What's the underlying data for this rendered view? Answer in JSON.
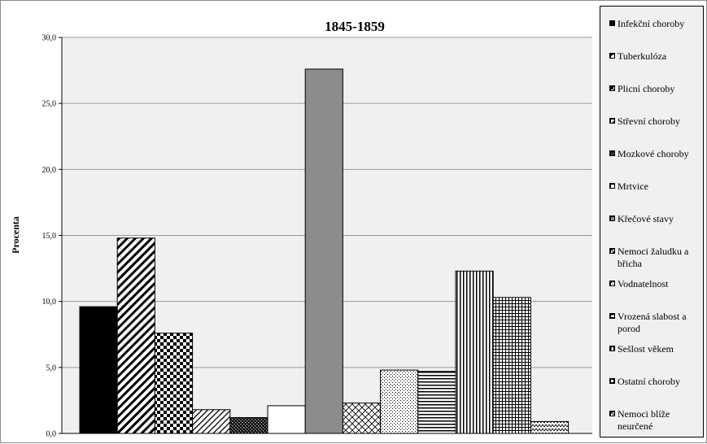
{
  "chart_data": {
    "type": "bar",
    "title": "1845-1859",
    "xlabel": "",
    "ylabel": "Procenta",
    "ylim": [
      0,
      30
    ],
    "yticks": [
      "0,0",
      "5,0",
      "10,0",
      "15,0",
      "20,0",
      "25,0",
      "30,0"
    ],
    "grid": true,
    "legend_position": "right",
    "categories": [
      "Infekční choroby",
      "Tuberkulóza",
      "Plicní choroby",
      "Střevní choroby",
      "Mozkové choroby",
      "Mrtvice",
      "Křečové stavy",
      "Nemoci žaludku a břicha",
      "Vodnatelnost",
      "Vrozená slabost a porod",
      "Sešlost věkem",
      "Ostatní choroby",
      "Nemoci blíže neurčené"
    ],
    "values": [
      9.6,
      14.8,
      7.6,
      1.8,
      1.2,
      2.1,
      27.6,
      2.3,
      4.8,
      4.7,
      12.3,
      10.3,
      0.9
    ],
    "patterns": [
      "solid-black",
      "diagonal-wide",
      "checker",
      "diagonal-thin",
      "checker-fine",
      "white",
      "solid-gray",
      "crosshatch-diamond",
      "dots",
      "horizontal-lines",
      "vertical-lines",
      "grid-fine",
      "zigzag"
    ],
    "colors": {
      "gray_bar": "#8c8c8c",
      "gridline": "#999999",
      "legend_bg": "#f0f0f0"
    }
  }
}
